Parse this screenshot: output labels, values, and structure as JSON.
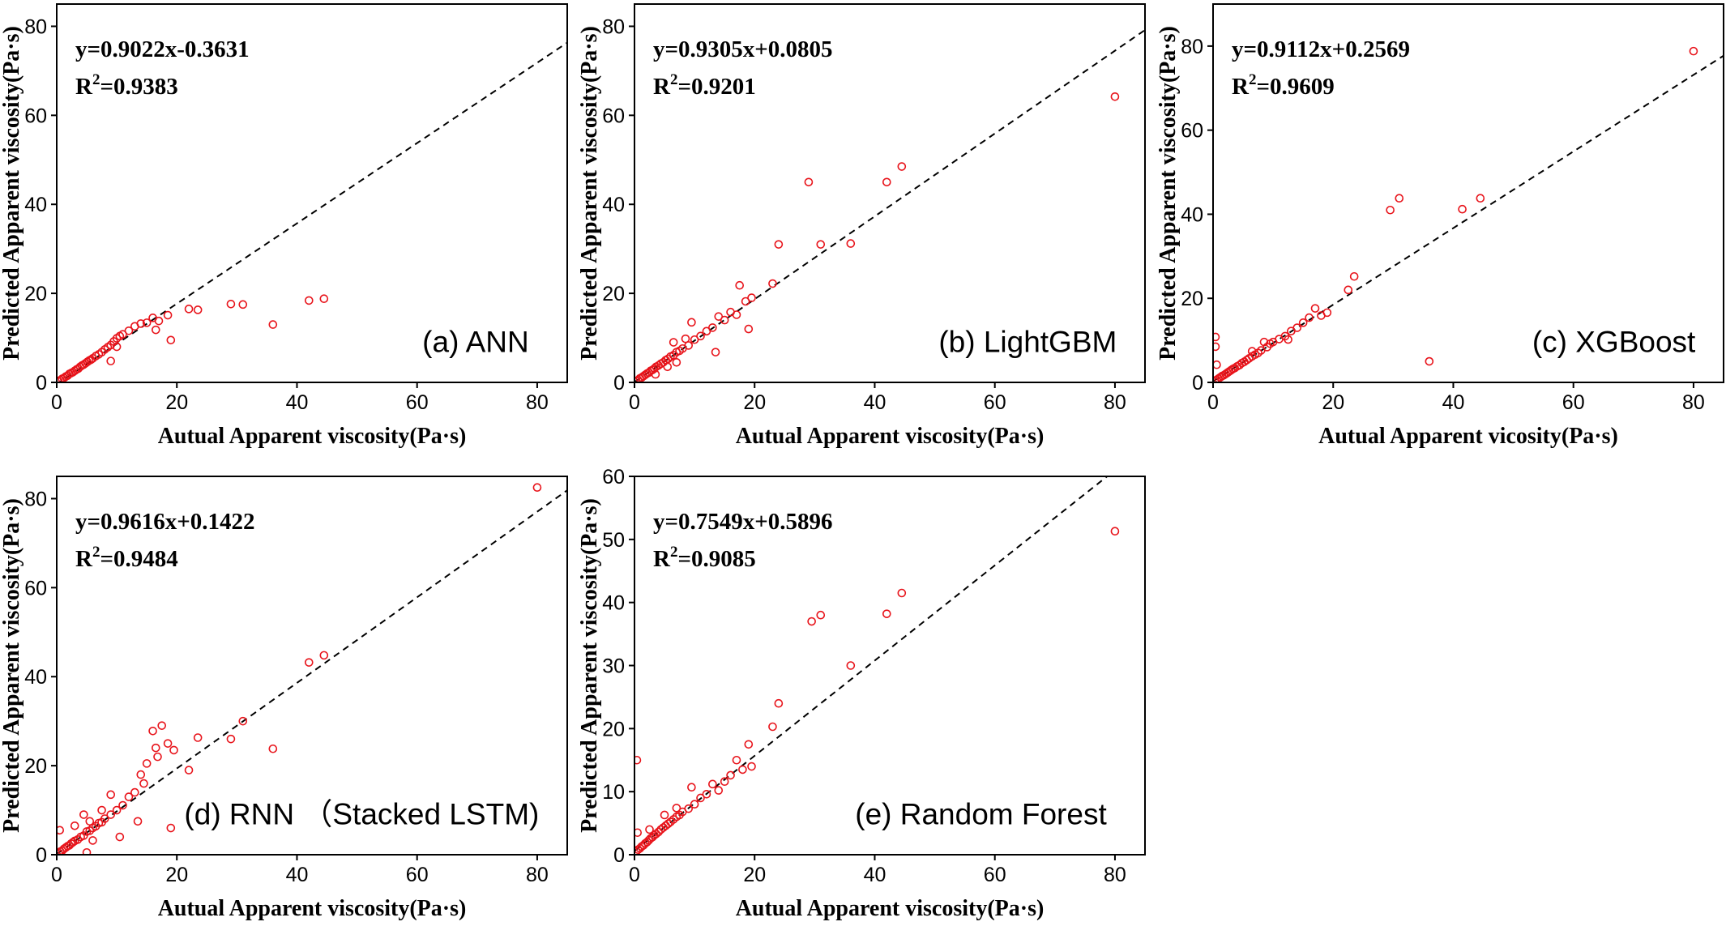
{
  "figure": {
    "colors": {
      "points": "#e8141b",
      "line": "#000000",
      "frame": "#000000"
    },
    "marker": "open-circle",
    "fit_line_style": "dashed"
  },
  "chart_data": [
    {
      "type": "scatter",
      "panel_label": "(a) ANN",
      "xlabel": "Autual Apparent viscosity(Pa·s)",
      "ylabel": "Predicted Apparent viscosity(Pa·s)",
      "xlim": [
        0,
        85
      ],
      "ylim": [
        0,
        85
      ],
      "xticks": [
        0,
        20,
        40,
        60,
        80
      ],
      "yticks": [
        0,
        20,
        40,
        60,
        80
      ],
      "equation": "y=0.9022x-0.3631",
      "r2_label": "R",
      "r2_sup": "2",
      "r2_value": "=0.9383",
      "fit": {
        "slope": 0.9022,
        "intercept": -0.3631
      },
      "points": [
        [
          0.3,
          0.2
        ],
        [
          0.6,
          0.5
        ],
        [
          0.9,
          0.8
        ],
        [
          1.2,
          1.0
        ],
        [
          1.5,
          1.3
        ],
        [
          1.8,
          1.5
        ],
        [
          2.1,
          1.9
        ],
        [
          2.4,
          2.1
        ],
        [
          2.7,
          2.3
        ],
        [
          3.0,
          2.6
        ],
        [
          3.3,
          2.9
        ],
        [
          3.6,
          3.1
        ],
        [
          3.9,
          3.5
        ],
        [
          4.2,
          3.8
        ],
        [
          4.5,
          4.0
        ],
        [
          4.8,
          4.3
        ],
        [
          5.1,
          4.6
        ],
        [
          5.4,
          4.9
        ],
        [
          5.7,
          5.1
        ],
        [
          6.0,
          5.4
        ],
        [
          6.5,
          5.9
        ],
        [
          7.0,
          6.3
        ],
        [
          7.5,
          6.8
        ],
        [
          8.0,
          7.4
        ],
        [
          8.5,
          7.9
        ],
        [
          9.0,
          8.4
        ],
        [
          9.5,
          9.2
        ],
        [
          10.0,
          9.9
        ],
        [
          10.5,
          10.4
        ],
        [
          11.0,
          10.8
        ],
        [
          12.0,
          11.6
        ],
        [
          13.0,
          12.6
        ],
        [
          14.0,
          13.2
        ],
        [
          15.0,
          13.4
        ],
        [
          16.0,
          14.5
        ],
        [
          16.5,
          11.8
        ],
        [
          17.0,
          13.8
        ],
        [
          18.5,
          15.1
        ],
        [
          19.0,
          9.5
        ],
        [
          9.0,
          4.8
        ],
        [
          10.0,
          8.0
        ],
        [
          22.0,
          16.5
        ],
        [
          23.5,
          16.3
        ],
        [
          29.0,
          17.6
        ],
        [
          31.0,
          17.5
        ],
        [
          36.0,
          13.0
        ],
        [
          42.0,
          18.4
        ],
        [
          44.5,
          18.8
        ]
      ]
    },
    {
      "type": "scatter",
      "panel_label": "(b) LightGBM",
      "xlabel": "Autual Apparent viscosity(Pa·s)",
      "ylabel": "Predicted Apparent viscosity(Pa·s)",
      "xlim": [
        0,
        85
      ],
      "ylim": [
        0,
        85
      ],
      "xticks": [
        0,
        20,
        40,
        60,
        80
      ],
      "yticks": [
        0,
        20,
        40,
        60,
        80
      ],
      "equation": "y=0.9305x+0.0805",
      "r2_label": "R",
      "r2_sup": "2",
      "r2_value": "=0.9201",
      "fit": {
        "slope": 0.9305,
        "intercept": 0.0805
      },
      "points": [
        [
          0.3,
          0.3
        ],
        [
          0.6,
          0.5
        ],
        [
          0.9,
          0.9
        ],
        [
          1.2,
          1.1
        ],
        [
          1.5,
          1.4
        ],
        [
          1.8,
          1.7
        ],
        [
          2.1,
          2.0
        ],
        [
          2.4,
          2.2
        ],
        [
          2.7,
          2.6
        ],
        [
          3.0,
          2.8
        ],
        [
          3.3,
          3.1
        ],
        [
          3.6,
          3.5
        ],
        [
          4.0,
          3.8
        ],
        [
          4.4,
          4.2
        ],
        [
          4.8,
          4.5
        ],
        [
          5.2,
          5.0
        ],
        [
          5.6,
          5.3
        ],
        [
          6.0,
          5.8
        ],
        [
          6.5,
          6.1
        ],
        [
          7.0,
          6.8
        ],
        [
          7.5,
          7.1
        ],
        [
          8.0,
          7.6
        ],
        [
          9.0,
          8.3
        ],
        [
          9.5,
          13.5
        ],
        [
          10.0,
          9.6
        ],
        [
          11.0,
          10.4
        ],
        [
          12.0,
          11.5
        ],
        [
          13.0,
          12.3
        ],
        [
          13.5,
          6.8
        ],
        [
          14.0,
          14.8
        ],
        [
          15.0,
          14.0
        ],
        [
          16.0,
          15.8
        ],
        [
          17.0,
          15.2
        ],
        [
          17.5,
          21.8
        ],
        [
          18.5,
          18.2
        ],
        [
          19.0,
          12.0
        ],
        [
          19.5,
          19.0
        ],
        [
          23.0,
          22.2
        ],
        [
          24.0,
          31.0
        ],
        [
          29.0,
          45.0
        ],
        [
          31.0,
          31.0
        ],
        [
          36.0,
          31.2
        ],
        [
          42.0,
          45.0
        ],
        [
          44.5,
          48.5
        ],
        [
          80.0,
          64.2
        ],
        [
          5.5,
          3.5
        ],
        [
          7.0,
          4.5
        ],
        [
          3.5,
          1.8
        ],
        [
          6.5,
          9.0
        ],
        [
          8.5,
          9.8
        ]
      ]
    },
    {
      "type": "scatter",
      "panel_label": "(c) XGBoost",
      "xlabel": "Autual Apparent vicosity(Pa·s)",
      "ylabel": "Predicted Apparent viscosity(Pa·s)",
      "xlim": [
        0,
        85
      ],
      "ylim": [
        0,
        90
      ],
      "xticks": [
        0,
        20,
        40,
        60,
        80
      ],
      "yticks": [
        0,
        20,
        40,
        60,
        80
      ],
      "equation": "y=0.9112x+0.2569",
      "r2_label": "R",
      "r2_sup": "2",
      "r2_value": "=0.9609",
      "fit": {
        "slope": 0.9112,
        "intercept": 0.2569
      },
      "points": [
        [
          0.3,
          0.4
        ],
        [
          0.6,
          0.6
        ],
        [
          0.9,
          0.9
        ],
        [
          1.2,
          1.2
        ],
        [
          1.5,
          1.5
        ],
        [
          1.8,
          1.7
        ],
        [
          2.1,
          2.0
        ],
        [
          2.4,
          2.3
        ],
        [
          2.7,
          2.6
        ],
        [
          3.0,
          2.9
        ],
        [
          3.3,
          3.2
        ],
        [
          3.6,
          3.4
        ],
        [
          4.0,
          3.8
        ],
        [
          4.4,
          4.1
        ],
        [
          4.8,
          4.6
        ],
        [
          5.2,
          4.9
        ],
        [
          5.6,
          5.3
        ],
        [
          6.0,
          5.7
        ],
        [
          6.5,
          6.2
        ],
        [
          7.0,
          6.6
        ],
        [
          7.5,
          7.0
        ],
        [
          8.0,
          7.6
        ],
        [
          9.0,
          8.4
        ],
        [
          9.5,
          9.2
        ],
        [
          10.0,
          9.6
        ],
        [
          11.0,
          10.3
        ],
        [
          12.0,
          11.0
        ],
        [
          13.0,
          12.2
        ],
        [
          14.0,
          13.0
        ],
        [
          15.0,
          14.2
        ],
        [
          16.0,
          15.4
        ],
        [
          17.0,
          17.6
        ],
        [
          18.0,
          15.9
        ],
        [
          19.0,
          16.6
        ],
        [
          22.5,
          22.0
        ],
        [
          23.5,
          25.2
        ],
        [
          29.5,
          41.0
        ],
        [
          31.0,
          43.8
        ],
        [
          36.0,
          5.0
        ],
        [
          41.5,
          41.2
        ],
        [
          44.5,
          43.8
        ],
        [
          80.0,
          78.8
        ],
        [
          0.4,
          8.5
        ],
        [
          0.4,
          10.8
        ],
        [
          0.6,
          4.2
        ],
        [
          6.5,
          7.4
        ],
        [
          8.5,
          9.6
        ],
        [
          12.5,
          10.2
        ]
      ]
    },
    {
      "type": "scatter",
      "panel_label": "(d) RNN （Stacked LSTM)",
      "xlabel": "Autual Apparent viscosity(Pa·s)",
      "ylabel": "Predicted Apparent viscosity(Pa·s)",
      "xlim": [
        0,
        85
      ],
      "ylim": [
        0,
        85
      ],
      "xticks": [
        0,
        20,
        40,
        60,
        80
      ],
      "yticks": [
        0,
        20,
        40,
        60,
        80
      ],
      "equation": "y=0.9616x+0.1422",
      "r2_label": "R",
      "r2_sup": "2",
      "r2_value": "=0.9484",
      "fit": {
        "slope": 0.9616,
        "intercept": 0.1422
      },
      "points": [
        [
          0.3,
          0.3
        ],
        [
          0.6,
          0.7
        ],
        [
          0.9,
          0.9
        ],
        [
          1.2,
          1.3
        ],
        [
          1.5,
          1.6
        ],
        [
          1.8,
          1.9
        ],
        [
          2.1,
          2.1
        ],
        [
          2.4,
          2.5
        ],
        [
          2.7,
          2.8
        ],
        [
          3.0,
          3.1
        ],
        [
          3.5,
          3.4
        ],
        [
          4.0,
          4.0
        ],
        [
          4.5,
          4.3
        ],
        [
          5.0,
          5.2
        ],
        [
          5.5,
          5.4
        ],
        [
          6.0,
          6.0
        ],
        [
          6.5,
          6.4
        ],
        [
          7.0,
          7.1
        ],
        [
          7.5,
          7.3
        ],
        [
          8.0,
          8.1
        ],
        [
          9.0,
          9.0
        ],
        [
          10.0,
          10.0
        ],
        [
          11.0,
          11.1
        ],
        [
          12.0,
          13.0
        ],
        [
          13.0,
          14.0
        ],
        [
          13.5,
          7.5
        ],
        [
          14.0,
          18.0
        ],
        [
          14.5,
          16.0
        ],
        [
          15.0,
          20.5
        ],
        [
          16.0,
          27.8
        ],
        [
          16.5,
          24.0
        ],
        [
          16.8,
          22.0
        ],
        [
          17.5,
          29.0
        ],
        [
          18.5,
          25.0
        ],
        [
          19.0,
          6.0
        ],
        [
          19.5,
          23.5
        ],
        [
          22.0,
          19.0
        ],
        [
          23.5,
          26.3
        ],
        [
          29.0,
          26.0
        ],
        [
          31.0,
          30.0
        ],
        [
          36.0,
          23.8
        ],
        [
          42.0,
          43.2
        ],
        [
          44.5,
          44.8
        ],
        [
          80.0,
          82.5
        ],
        [
          0.5,
          5.5
        ],
        [
          4.5,
          9.0
        ],
        [
          5.0,
          0.5
        ],
        [
          6.0,
          3.2
        ],
        [
          7.5,
          10.0
        ],
        [
          9.0,
          13.5
        ],
        [
          10.5,
          4.0
        ],
        [
          3.0,
          6.5
        ],
        [
          5.5,
          7.5
        ]
      ]
    },
    {
      "type": "scatter",
      "panel_label": "(e) Random Forest",
      "xlabel": "Autual Apparent viscosity(Pa·s)",
      "ylabel": "Predicted Apparent viscosity(Pa·s)",
      "xlim": [
        0,
        85
      ],
      "ylim": [
        0,
        60
      ],
      "xticks": [
        0,
        20,
        40,
        60,
        80
      ],
      "yticks": [
        0,
        10,
        20,
        30,
        40,
        50,
        60
      ],
      "equation": "y=0.7549x+0.5896",
      "r2_label": "R",
      "r2_sup": "2",
      "r2_value": "=0.9085",
      "fit": {
        "slope": 0.7549,
        "intercept": 0.5896
      },
      "points": [
        [
          0.3,
          0.5
        ],
        [
          0.6,
          0.8
        ],
        [
          0.9,
          1.0
        ],
        [
          1.2,
          1.3
        ],
        [
          1.5,
          1.5
        ],
        [
          1.8,
          1.8
        ],
        [
          2.1,
          2.0
        ],
        [
          2.4,
          2.3
        ],
        [
          2.7,
          2.6
        ],
        [
          3.0,
          2.8
        ],
        [
          3.3,
          3.1
        ],
        [
          3.6,
          3.3
        ],
        [
          4.0,
          3.6
        ],
        [
          4.4,
          4.0
        ],
        [
          4.8,
          4.3
        ],
        [
          5.2,
          4.6
        ],
        [
          5.6,
          4.9
        ],
        [
          6.0,
          5.2
        ],
        [
          6.5,
          5.6
        ],
        [
          7.0,
          6.0
        ],
        [
          7.5,
          6.3
        ],
        [
          8.0,
          6.8
        ],
        [
          9.0,
          7.3
        ],
        [
          9.5,
          10.7
        ],
        [
          10.0,
          8.0
        ],
        [
          11.0,
          9.0
        ],
        [
          12.0,
          9.6
        ],
        [
          13.0,
          11.2
        ],
        [
          14.0,
          10.2
        ],
        [
          15.0,
          11.6
        ],
        [
          16.0,
          12.6
        ],
        [
          17.0,
          15.0
        ],
        [
          18.0,
          13.5
        ],
        [
          19.0,
          17.5
        ],
        [
          19.5,
          14.0
        ],
        [
          23.0,
          20.3
        ],
        [
          24.0,
          24.0
        ],
        [
          29.5,
          37.0
        ],
        [
          31.0,
          38.0
        ],
        [
          36.0,
          30.0
        ],
        [
          42.0,
          38.2
        ],
        [
          44.5,
          41.5
        ],
        [
          80.0,
          51.3
        ],
        [
          0.4,
          15.0
        ],
        [
          0.5,
          3.5
        ],
        [
          2.5,
          4.0
        ],
        [
          5.0,
          6.3
        ],
        [
          7.0,
          7.4
        ]
      ]
    }
  ]
}
